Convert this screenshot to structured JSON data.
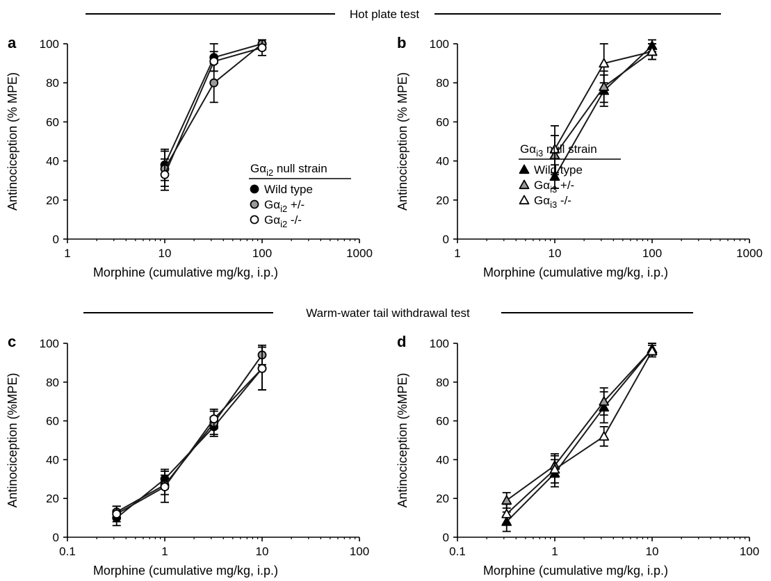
{
  "figure": {
    "hot_plate_title": "Hot plate test",
    "tail_withdrawal_title": "Warm-water tail withdrawal test"
  },
  "colors": {
    "wild_type": "#000000",
    "heterozygous": "#9a9a9a",
    "knockout": "#ffffff",
    "line": "#1a1a1a"
  },
  "legends": {
    "gai2": {
      "title_base": "Gα",
      "title_sub": "i2",
      "title_rest": " null strain",
      "entries": [
        {
          "marker": "circle",
          "fill": "#000000",
          "base": "Wild type",
          "sub": "",
          "rest": ""
        },
        {
          "marker": "circle",
          "fill": "#9a9a9a",
          "base": "Gα",
          "sub": "i2",
          "rest": " +/-"
        },
        {
          "marker": "circle",
          "fill": "#ffffff",
          "base": "Gα",
          "sub": "i2",
          "rest": " -/-"
        }
      ]
    },
    "gai3": {
      "title_base": "Gα",
      "title_sub": "i3",
      "title_rest": " null strain",
      "entries": [
        {
          "marker": "triangle",
          "fill": "#000000",
          "base": "Wild type",
          "sub": "",
          "rest": ""
        },
        {
          "marker": "triangle",
          "fill": "#9a9a9a",
          "base": "Gα",
          "sub": "i3",
          "rest": " +/-"
        },
        {
          "marker": "triangle",
          "fill": "#ffffff",
          "base": "Gα",
          "sub": "i3",
          "rest": " -/-"
        }
      ]
    }
  },
  "chart_data": [
    {
      "panel": "a",
      "type": "scatter",
      "section": "Hot plate test",
      "xlabel": "Morphine (cumulative mg/kg, i.p.)",
      "ylabel": "Antinociception (% MPE)",
      "xscale": "log",
      "xlim": [
        1,
        1000
      ],
      "ylim": [
        0,
        100
      ],
      "xticks": [
        "1",
        "10",
        "100",
        "1000"
      ],
      "yticks": [
        "0",
        "20",
        "40",
        "60",
        "80",
        "100"
      ],
      "marker": "circle",
      "legend": "gai2",
      "series": [
        {
          "name": "Wild type",
          "fill": "#000000",
          "x": [
            10,
            32,
            100
          ],
          "y": [
            38,
            93,
            100
          ],
          "err": [
            8,
            7,
            3
          ]
        },
        {
          "name": "Gαi2 +/-",
          "fill": "#9a9a9a",
          "x": [
            10,
            32,
            100
          ],
          "y": [
            36,
            80,
            100
          ],
          "err": [
            9,
            10,
            3
          ]
        },
        {
          "name": "Gαi2 -/-",
          "fill": "#ffffff",
          "x": [
            10,
            32,
            100
          ],
          "y": [
            33,
            91,
            98
          ],
          "err": [
            8,
            5,
            4
          ]
        }
      ]
    },
    {
      "panel": "b",
      "type": "scatter",
      "section": "Hot plate test",
      "xlabel": "Morphine (cumulative mg/kg, i.p.)",
      "ylabel": "Antinociception (% MPE)",
      "xscale": "log",
      "xlim": [
        1,
        1000
      ],
      "ylim": [
        0,
        100
      ],
      "xticks": [
        "1",
        "10",
        "100",
        "1000"
      ],
      "yticks": [
        "0",
        "20",
        "40",
        "60",
        "80",
        "100"
      ],
      "marker": "triangle",
      "legend": "gai3",
      "series": [
        {
          "name": "Wild type",
          "fill": "#000000",
          "x": [
            10,
            32,
            100
          ],
          "y": [
            32,
            76,
            99
          ],
          "err": [
            6,
            8,
            3
          ]
        },
        {
          "name": "Gαi3 +/-",
          "fill": "#9a9a9a",
          "x": [
            10,
            32,
            100
          ],
          "y": [
            43,
            78,
            96
          ],
          "err": [
            10,
            8,
            4
          ]
        },
        {
          "name": "Gαi3 -/-",
          "fill": "#ffffff",
          "x": [
            10,
            32,
            100
          ],
          "y": [
            46,
            90,
            96
          ],
          "err": [
            12,
            10,
            4
          ]
        }
      ]
    },
    {
      "panel": "c",
      "type": "scatter",
      "section": "Warm-water tail withdrawal test",
      "xlabel": "Morphine (cumulative mg/kg, i.p.)",
      "ylabel": "Antinociception (%MPE)",
      "xscale": "log",
      "xlim": [
        0.1,
        100
      ],
      "ylim": [
        0,
        100
      ],
      "xticks": [
        "0.1",
        "1",
        "10",
        "100"
      ],
      "yticks": [
        "0",
        "20",
        "40",
        "60",
        "80",
        "100"
      ],
      "marker": "circle",
      "legend": "",
      "series": [
        {
          "name": "Wild type",
          "fill": "#000000",
          "x": [
            0.32,
            1,
            3.2,
            10
          ],
          "y": [
            10,
            30,
            57,
            87
          ],
          "err": [
            4,
            5,
            5,
            11
          ]
        },
        {
          "name": "Gαi2 +/-",
          "fill": "#9a9a9a",
          "x": [
            0.32,
            1,
            3.2,
            10
          ],
          "y": [
            13,
            27,
            59,
            94
          ],
          "err": [
            3,
            5,
            6,
            5
          ]
        },
        {
          "name": "Gαi2 -/-",
          "fill": "#ffffff",
          "x": [
            0.32,
            1,
            3.2,
            10
          ],
          "y": [
            12,
            26,
            61,
            87
          ],
          "err": [
            4,
            8,
            5,
            11
          ]
        }
      ]
    },
    {
      "panel": "d",
      "type": "scatter",
      "section": "Warm-water tail withdrawal test",
      "xlabel": "Morphine (cumulative mg/kg, i.p.)",
      "ylabel": "Antinociception (%MPE)",
      "xscale": "log",
      "xlim": [
        0.1,
        100
      ],
      "ylim": [
        0,
        100
      ],
      "xticks": [
        "0.1",
        "1",
        "10",
        "100"
      ],
      "yticks": [
        "0",
        "20",
        "40",
        "60",
        "80",
        "100"
      ],
      "marker": "triangle",
      "legend": "",
      "series": [
        {
          "name": "Wild type",
          "fill": "#000000",
          "x": [
            0.32,
            1,
            3.2,
            10
          ],
          "y": [
            8,
            33,
            67,
            97
          ],
          "err": [
            5,
            7,
            8,
            3
          ]
        },
        {
          "name": "Gαi3 +/-",
          "fill": "#9a9a9a",
          "x": [
            0.32,
            1,
            3.2,
            10
          ],
          "y": [
            19,
            37,
            70,
            97
          ],
          "err": [
            4,
            6,
            7,
            3
          ]
        },
        {
          "name": "Gαi3 -/-",
          "fill": "#ffffff",
          "x": [
            0.32,
            1,
            3.2,
            10
          ],
          "y": [
            12,
            35,
            52,
            96
          ],
          "err": [
            5,
            7,
            5,
            3
          ]
        }
      ]
    }
  ]
}
